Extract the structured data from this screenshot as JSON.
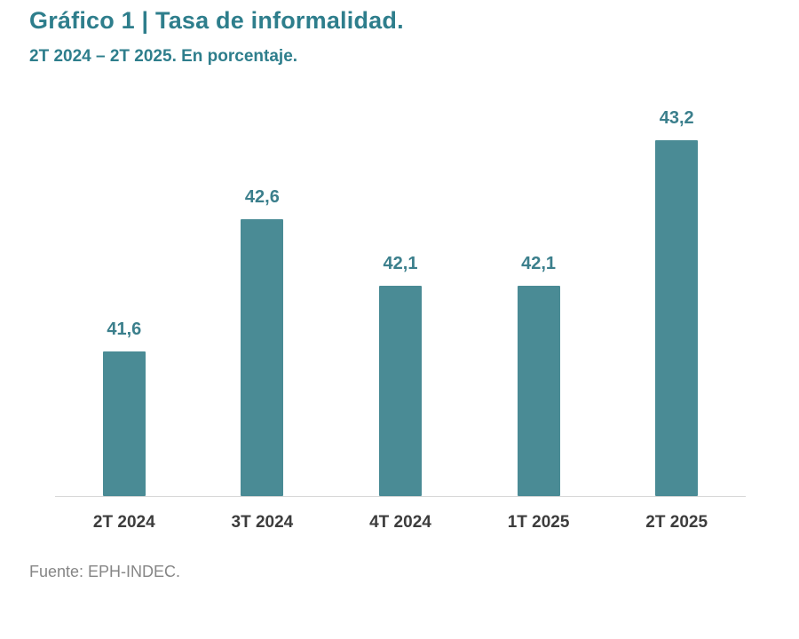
{
  "header": {
    "title": "Gráfico 1 | Tasa de informalidad.",
    "subtitle": "2T 2024 – 2T 2025. En porcentaje."
  },
  "chart_data": {
    "type": "bar",
    "title": "Gráfico 1 | Tasa de informalidad.",
    "subtitle": "2T 2024 – 2T 2025. En porcentaje.",
    "categories": [
      "2T 2024",
      "3T 2024",
      "4T 2024",
      "1T 2025",
      "2T 2025"
    ],
    "values": [
      41.6,
      42.6,
      42.1,
      42.1,
      43.2
    ],
    "value_labels": [
      "41,6",
      "42,6",
      "42,1",
      "42,1",
      "43,2"
    ],
    "xlabel": "",
    "ylabel": "",
    "unit": "percent",
    "ylim": [
      40.5,
      43.6
    ],
    "grid": false,
    "legend": false,
    "bar_color": "#4a8b95",
    "value_label_color": "#3b7f8c",
    "title_color": "#2e7e8c",
    "axis_line_color": "#d8d8d8"
  },
  "footer": {
    "source": "Fuente: EPH-INDEC."
  }
}
